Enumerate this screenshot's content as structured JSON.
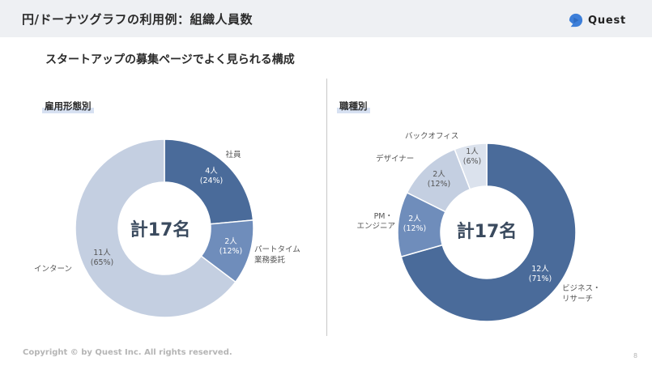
{
  "header": {
    "title": "円/ドーナツグラフの利用例：組織人員数"
  },
  "logo": {
    "text": "Quest",
    "icon": "quest-logo-icon"
  },
  "subtitle": "スタートアップの募集ページでよく見られる構成",
  "footer": {
    "copyright": "Copyright © by Quest Inc. All rights reserved.",
    "page_number": "8"
  },
  "colors": {
    "dark": "#4a6b9a",
    "mid": "#6f8dbb",
    "light": "#c4cfe1",
    "lighter": "#dbe2ed"
  },
  "chart_data": [
    {
      "type": "pie",
      "title": "雇用形態別",
      "center_label": "計17名",
      "slices": [
        {
          "label": "社員",
          "value": 4,
          "value_label": "4人",
          "pct_label": "(24%)"
        },
        {
          "label": "パートタイム 業務委託",
          "value": 2,
          "value_label": "2人",
          "pct_label": "(12%)"
        },
        {
          "label": "インターン",
          "value": 11,
          "value_label": "11人",
          "pct_label": "(65%)"
        }
      ]
    },
    {
      "type": "pie",
      "title": "職種別",
      "center_label": "計17名",
      "slices": [
        {
          "label": "ビジネス・ リサーチ",
          "value": 12,
          "value_label": "12人",
          "pct_label": "(71%)"
        },
        {
          "label": "PM・ エンジニア",
          "value": 2,
          "value_label": "2人",
          "pct_label": "(12%)"
        },
        {
          "label": "デザイナー",
          "value": 2,
          "value_label": "2人",
          "pct_label": "(12%)"
        },
        {
          "label": "バックオフィス",
          "value": 1,
          "value_label": "1人",
          "pct_label": "(6%)"
        }
      ]
    }
  ]
}
